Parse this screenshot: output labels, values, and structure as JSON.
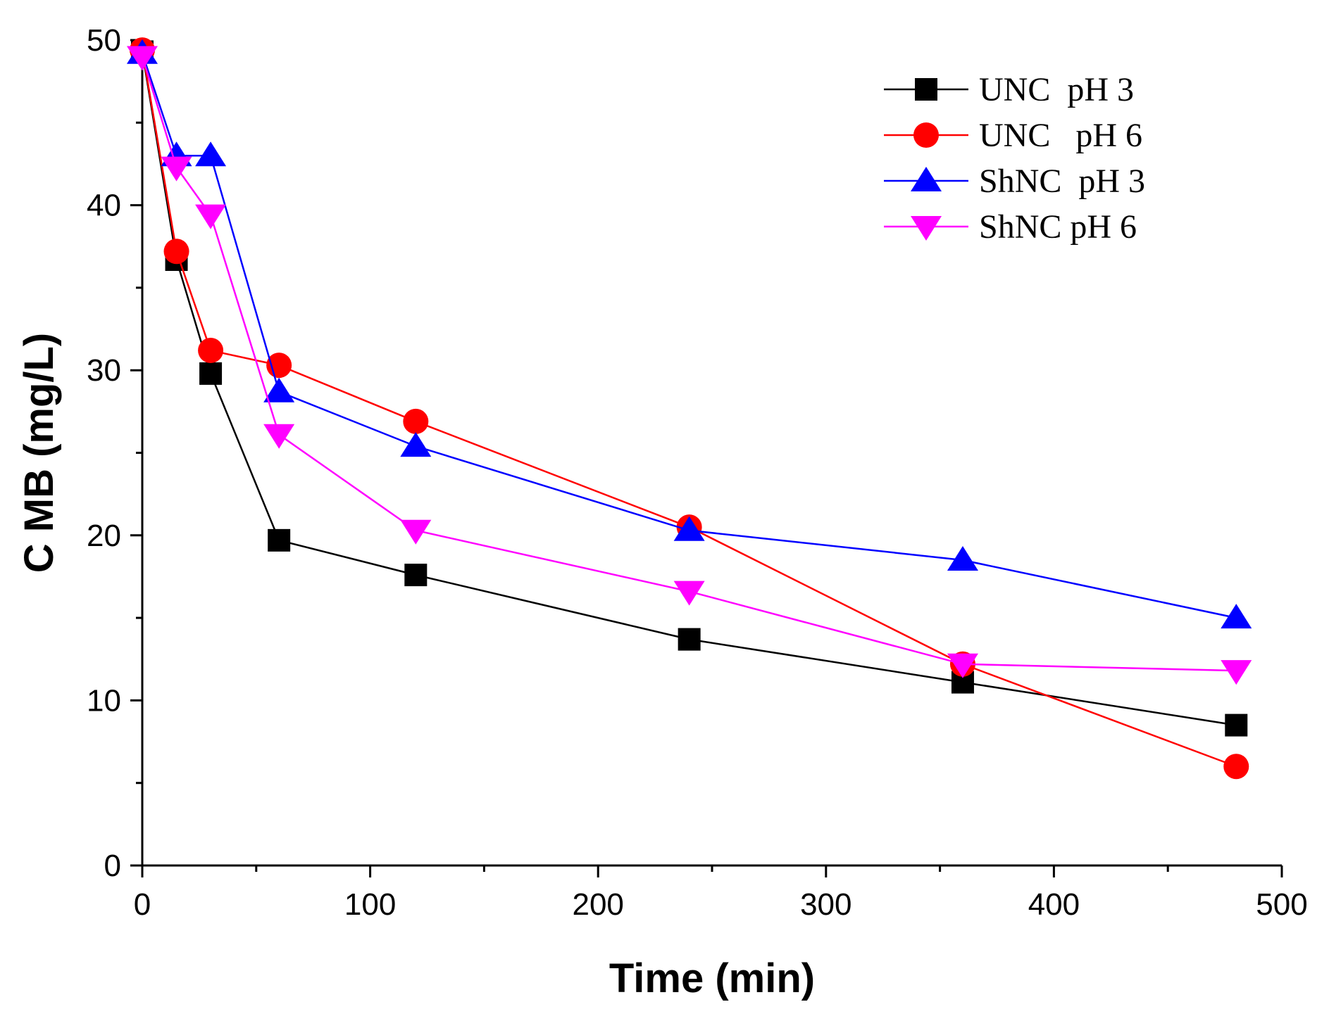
{
  "chart_data": {
    "type": "line",
    "xlabel": "Time (min)",
    "ylabel": "C MB (mg/L)",
    "xlim": [
      0,
      500
    ],
    "ylim": [
      0,
      50
    ],
    "x_ticks": [
      0,
      100,
      200,
      300,
      400,
      500
    ],
    "x_tick_labels": [
      "0",
      "100",
      "200",
      "300",
      "400",
      "500"
    ],
    "y_ticks": [
      0,
      10,
      20,
      30,
      40,
      50
    ],
    "y_tick_labels": [
      "0",
      "10",
      "20",
      "30",
      "40",
      "50"
    ],
    "grid": false,
    "legend_position": "top-right",
    "series": [
      {
        "name": "UNC  pH 3",
        "color": "#000000",
        "marker": "square",
        "x": [
          0,
          15,
          30,
          60,
          120,
          240,
          360,
          480
        ],
        "values": [
          49.3,
          36.7,
          29.8,
          19.7,
          17.6,
          13.7,
          11.1,
          8.5
        ]
      },
      {
        "name": "UNC   pH 6",
        "color": "#ff0000",
        "marker": "circle",
        "x": [
          0,
          15,
          30,
          60,
          120,
          240,
          360,
          480
        ],
        "values": [
          49.4,
          37.2,
          31.2,
          30.3,
          26.9,
          20.5,
          12.2,
          6.0
        ]
      },
      {
        "name": "ShNC  pH 3",
        "color": "#0000ff",
        "marker": "triangle-up",
        "x": [
          0,
          15,
          30,
          60,
          120,
          240,
          360,
          480
        ],
        "values": [
          49.2,
          43.0,
          43.0,
          28.7,
          25.4,
          20.3,
          18.5,
          15.0
        ]
      },
      {
        "name": "ShNC pH 6",
        "color": "#ff00ff",
        "marker": "triangle-down",
        "x": [
          0,
          15,
          30,
          60,
          120,
          240,
          360,
          480
        ],
        "values": [
          49.0,
          42.3,
          39.4,
          26.1,
          20.3,
          16.6,
          12.2,
          11.8
        ]
      }
    ]
  }
}
